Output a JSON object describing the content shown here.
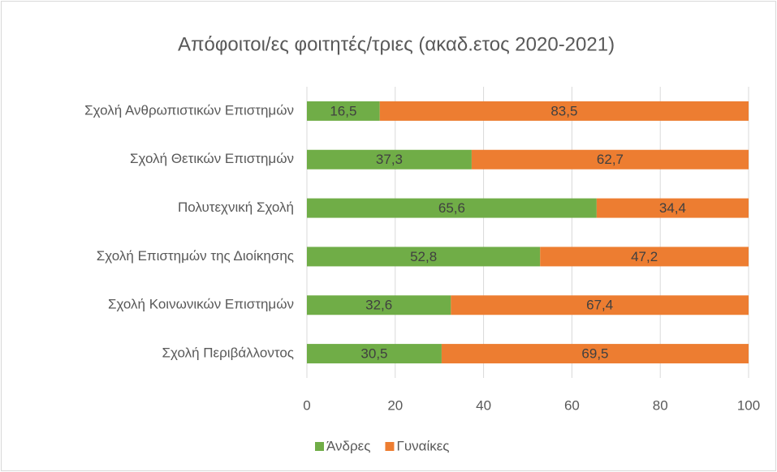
{
  "chart_data": {
    "type": "bar",
    "orientation": "horizontal",
    "stacked": true,
    "title": "Απόφοιτοι/ες φοιτητές/τριες (ακαδ.ετος 2020-2021)",
    "categories": [
      "Σχολή Ανθρωπιστικών Επιστημών",
      "Σχολή Θετικών Επιστημών",
      "Πολυτεχνική Σχολή",
      "Σχολή Επιστημών της Διοίκησης",
      "Σχολή Κοινωνικών Επιστημών",
      "Σχολή Περιβάλλοντος"
    ],
    "series": [
      {
        "name": "Άνδρες",
        "color": "#70ad47",
        "values": [
          16.5,
          37.3,
          65.6,
          52.8,
          32.6,
          30.5
        ],
        "value_labels": [
          "16,5",
          "37,3",
          "65,6",
          "52,8",
          "32,6",
          "30,5"
        ]
      },
      {
        "name": "Γυναίκες",
        "color": "#ed7d31",
        "values": [
          83.5,
          62.7,
          34.4,
          47.2,
          67.4,
          69.5
        ],
        "value_labels": [
          "83,5",
          "62,7",
          "34,4",
          "47,2",
          "67,4",
          "69,5"
        ]
      }
    ],
    "xlim": [
      0,
      100
    ],
    "xticks": [
      0,
      20,
      40,
      60,
      80,
      100
    ],
    "grid": true,
    "legend": "bottom"
  }
}
